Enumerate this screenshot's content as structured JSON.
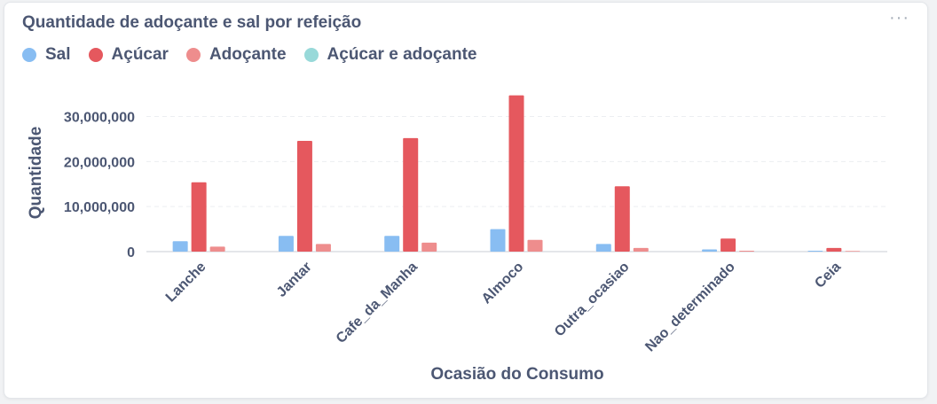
{
  "card": {
    "title": "Quantidade de adoçante e sal por refeição",
    "menu_glyph": "···"
  },
  "chart_data": {
    "type": "bar",
    "title": "Quantidade de adoçante e sal por refeição",
    "xlabel": "Ocasião do Consumo",
    "ylabel": "Quantidade",
    "ylim": [
      0,
      35000000
    ],
    "yticks": [
      0,
      10000000,
      20000000,
      30000000
    ],
    "ytick_labels": [
      "0",
      "10,000,000",
      "20,000,000",
      "30,000,000"
    ],
    "grid": true,
    "legend_position": "top-left",
    "categories": [
      "Lanche",
      "Jantar",
      "Cafe_da_Manha",
      "Almoco",
      "Outra_ocasiao",
      "Nao_determinado",
      "Ceia"
    ],
    "series": [
      {
        "name": "Sal",
        "color": "#88bdf2",
        "values": [
          2300000,
          3500000,
          3500000,
          5000000,
          1700000,
          500000,
          200000
        ]
      },
      {
        "name": "Açúcar",
        "color": "#e5585e",
        "values": [
          15400000,
          24600000,
          25200000,
          34700000,
          14500000,
          2900000,
          800000
        ]
      },
      {
        "name": "Adoçante",
        "color": "#ee8d8d",
        "values": [
          1100000,
          1700000,
          2000000,
          2600000,
          800000,
          200000,
          150000
        ]
      },
      {
        "name": "Açúcar e adoçante",
        "color": "#98d9d9",
        "values": [
          0,
          0,
          0,
          0,
          0,
          0,
          0
        ]
      }
    ]
  }
}
